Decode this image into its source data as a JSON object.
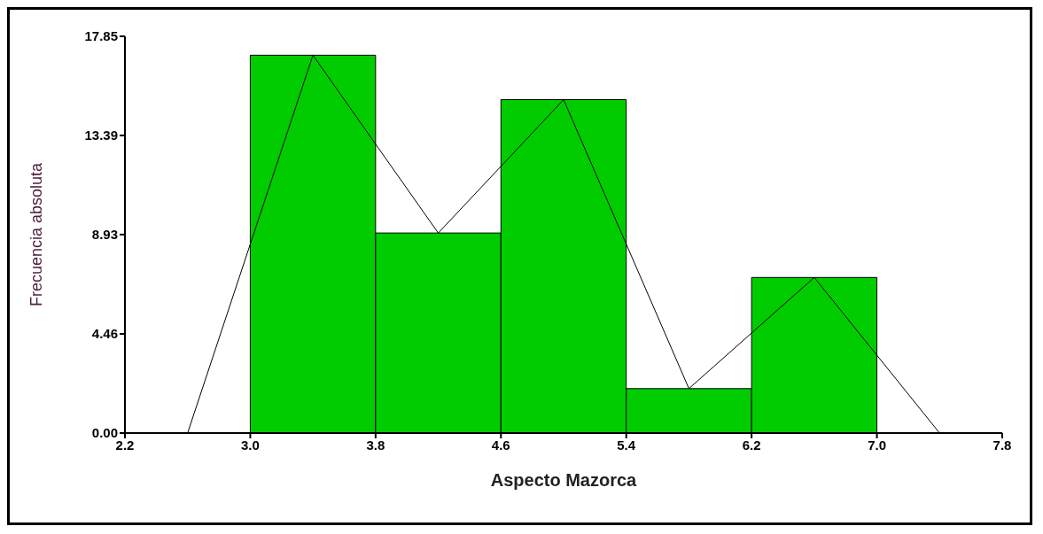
{
  "chart_data": {
    "type": "histogram",
    "xlabel": "Aspecto Mazorca",
    "ylabel": "Frecuencia absoluta",
    "bins": [
      3.0,
      3.8,
      4.6,
      5.4,
      6.2,
      7.0
    ],
    "values": [
      17,
      9,
      15,
      2,
      7
    ],
    "color": "#00cc00",
    "series": [
      {
        "type": "line",
        "color": "#000000",
        "x": [
          2.6,
          3.4,
          4.2,
          5.0,
          5.8,
          6.6,
          7.4
        ],
        "values": [
          0,
          17,
          9,
          15,
          2,
          7,
          0
        ]
      }
    ],
    "marker": "none",
    "xlim": [
      2.2,
      7.8
    ],
    "xticks": [
      2.2,
      {
        "value": 3,
        "label": "3.0"
      },
      3.8,
      4.6,
      5.4,
      6.2,
      {
        "value": 7,
        "label": "7.0"
      },
      7.8
    ],
    "ylim": [
      0,
      17.85
    ],
    "yticks": [
      {
        "value": 0,
        "label": "0.00"
      },
      4.46,
      8.93,
      13.39,
      17.85
    ],
    "grid": false
  }
}
